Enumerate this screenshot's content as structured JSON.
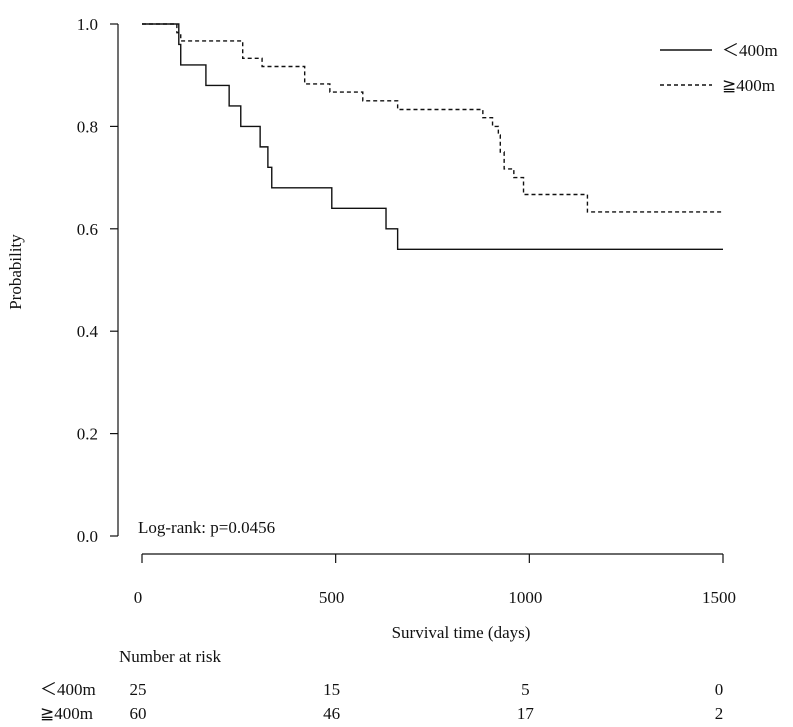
{
  "chart_data": {
    "type": "line",
    "subtype": "kaplan-meier",
    "xlabel": "Survival time (days)",
    "ylabel": "Probability",
    "xlim": [
      0,
      1500
    ],
    "ylim": [
      0,
      1
    ],
    "xticks": [
      0,
      500,
      1000,
      1500
    ],
    "yticks": [
      0.0,
      0.2,
      0.4,
      0.6,
      0.8,
      1.0
    ],
    "x_tick_labels": [
      "0",
      "500",
      "1000",
      "1500"
    ],
    "y_tick_labels": [
      "0.0",
      "0.2",
      "0.4",
      "0.6",
      "0.8",
      "1.0"
    ],
    "annotation": "Log-rank: p=0.0456",
    "legend_position": "top-right",
    "series": [
      {
        "name": "＜400m",
        "style": "solid",
        "steps": [
          [
            0,
            1.0
          ],
          [
            95,
            0.96
          ],
          [
            100,
            0.92
          ],
          [
            165,
            0.88
          ],
          [
            225,
            0.84
          ],
          [
            255,
            0.8
          ],
          [
            305,
            0.76
          ],
          [
            325,
            0.72
          ],
          [
            335,
            0.68
          ],
          [
            490,
            0.64
          ],
          [
            630,
            0.6
          ],
          [
            660,
            0.56
          ],
          [
            1500,
            0.56
          ]
        ]
      },
      {
        "name": "≧400m",
        "style": "dashed",
        "steps": [
          [
            0,
            1.0
          ],
          [
            90,
            0.983
          ],
          [
            100,
            0.967
          ],
          [
            260,
            0.933
          ],
          [
            310,
            0.917
          ],
          [
            420,
            0.883
          ],
          [
            485,
            0.867
          ],
          [
            570,
            0.85
          ],
          [
            660,
            0.833
          ],
          [
            880,
            0.817
          ],
          [
            905,
            0.8
          ],
          [
            920,
            0.783
          ],
          [
            925,
            0.75
          ],
          [
            935,
            0.717
          ],
          [
            960,
            0.7
          ],
          [
            985,
            0.667
          ],
          [
            1150,
            0.633
          ],
          [
            1500,
            0.633
          ]
        ]
      }
    ],
    "risk_table": {
      "title": "Number at risk",
      "times": [
        "0",
        "500",
        "1000",
        "1500"
      ],
      "rows": [
        {
          "label": "＜400m",
          "counts": [
            "25",
            "15",
            "5",
            "0"
          ]
        },
        {
          "label": "≧400m",
          "counts": [
            "60",
            "46",
            "17",
            "2"
          ]
        }
      ]
    }
  }
}
